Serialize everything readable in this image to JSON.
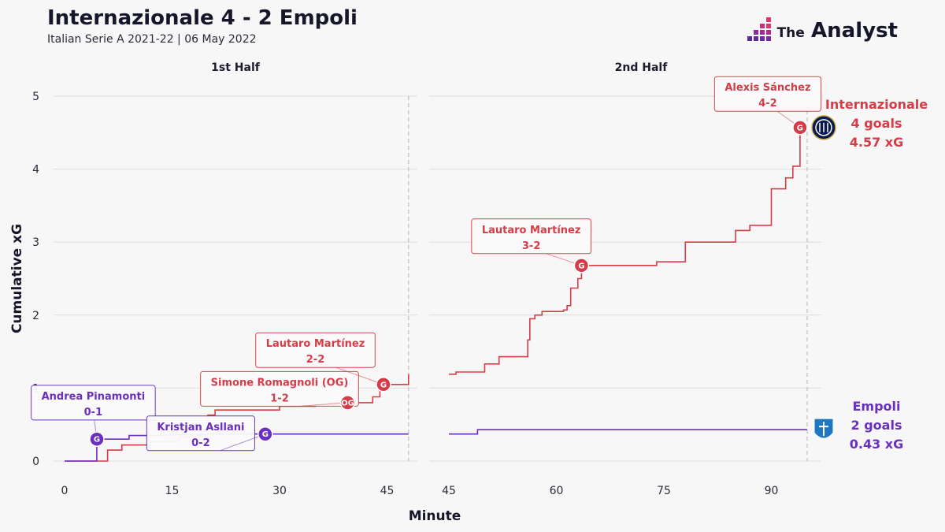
{
  "header": {
    "title": "Internazionale 4 - 2 Empoli",
    "subtitle": "Italian Serie A 2021-22 | 06 May 2022",
    "brand_the": "The",
    "brand_name": "Analyst"
  },
  "chart_data": {
    "type": "line",
    "title": "Internazionale 4 - 2 Empoli",
    "subtitle": "Italian Serie A 2021-22 | 06 May 2022",
    "xlabel": "Minute",
    "ylabel": "Cumulative xG",
    "ylim": [
      0,
      5
    ],
    "yticks": [
      "0",
      "1",
      "2",
      "3",
      "4",
      "5"
    ],
    "grid": true,
    "panels": [
      {
        "name": "1st Half",
        "xlim": [
          0,
          48
        ],
        "xticks": [
          "0",
          "15",
          "30",
          "45"
        ],
        "end_minute": 48
      },
      {
        "name": "2nd Half",
        "xlim": [
          45,
          95
        ],
        "xticks": [
          "45",
          "60",
          "75",
          "90"
        ],
        "end_minute": 95
      }
    ],
    "series": [
      {
        "name": "Internazionale",
        "color": "#d63c47",
        "goals_text": "4 goals",
        "xg_text": "4.57 xG",
        "logo": "inter-crest",
        "half1": [
          [
            0,
            0
          ],
          [
            6,
            0
          ],
          [
            6,
            0.15
          ],
          [
            8,
            0.15
          ],
          [
            8,
            0.22
          ],
          [
            12,
            0.22
          ],
          [
            12,
            0.27
          ],
          [
            16,
            0.27
          ],
          [
            16,
            0.33
          ],
          [
            19,
            0.33
          ],
          [
            19,
            0.43
          ],
          [
            20,
            0.43
          ],
          [
            20,
            0.63
          ],
          [
            21,
            0.63
          ],
          [
            21,
            0.7
          ],
          [
            30,
            0.7
          ],
          [
            30,
            0.75
          ],
          [
            35,
            0.75
          ],
          [
            35,
            0.77
          ],
          [
            37,
            0.77
          ],
          [
            37,
            0.8
          ],
          [
            43,
            0.8
          ],
          [
            43,
            0.88
          ],
          [
            44,
            0.88
          ],
          [
            44,
            1.05
          ],
          [
            48,
            1.05
          ],
          [
            48,
            1.19
          ]
        ],
        "half2": [
          [
            45,
            1.19
          ],
          [
            46,
            1.19
          ],
          [
            46,
            1.22
          ],
          [
            50,
            1.22
          ],
          [
            50,
            1.33
          ],
          [
            52,
            1.33
          ],
          [
            52,
            1.43
          ],
          [
            56,
            1.43
          ],
          [
            56,
            1.66
          ],
          [
            56.3,
            1.66
          ],
          [
            56.3,
            1.95
          ],
          [
            57,
            1.95
          ],
          [
            57,
            2.0
          ],
          [
            58,
            2.0
          ],
          [
            58,
            2.05
          ],
          [
            61,
            2.05
          ],
          [
            61,
            2.07
          ],
          [
            61.5,
            2.07
          ],
          [
            61.5,
            2.13
          ],
          [
            62,
            2.13
          ],
          [
            62,
            2.37
          ],
          [
            63,
            2.37
          ],
          [
            63,
            2.5
          ],
          [
            63.5,
            2.5
          ],
          [
            63.5,
            2.68
          ],
          [
            74,
            2.68
          ],
          [
            74,
            2.73
          ],
          [
            78,
            2.73
          ],
          [
            78,
            3.0
          ],
          [
            85,
            3.0
          ],
          [
            85,
            3.16
          ],
          [
            87,
            3.16
          ],
          [
            87,
            3.23
          ],
          [
            90,
            3.23
          ],
          [
            90,
            3.73
          ],
          [
            92,
            3.73
          ],
          [
            92,
            3.88
          ],
          [
            93,
            3.88
          ],
          [
            93,
            4.04
          ],
          [
            94,
            4.04
          ],
          [
            94,
            4.57
          ]
        ]
      },
      {
        "name": "Empoli",
        "color": "#6a2fbf",
        "goals_text": "2 goals",
        "xg_text": "0.43 xG",
        "logo": "empoli-crest",
        "half1": [
          [
            0,
            0
          ],
          [
            4.5,
            0
          ],
          [
            4.5,
            0.3
          ],
          [
            9,
            0.3
          ],
          [
            9,
            0.35
          ],
          [
            14,
            0.35
          ],
          [
            14,
            0.36
          ],
          [
            20,
            0.36
          ],
          [
            20,
            0.37
          ],
          [
            48,
            0.37
          ]
        ],
        "half2": [
          [
            45,
            0.37
          ],
          [
            49,
            0.37
          ],
          [
            49,
            0.43
          ],
          [
            95,
            0.43
          ]
        ]
      }
    ],
    "annotations": [
      {
        "panel": 0,
        "team": "Empoli",
        "x": 4.5,
        "y": 0.3,
        "marker": "G",
        "player": "Andrea Pinamonti",
        "score": "0-1",
        "label_x": 4,
        "label_y": 0.8
      },
      {
        "panel": 0,
        "team": "Empoli",
        "x": 28,
        "y": 0.37,
        "marker": "G",
        "player": "Kristjan Asllani",
        "score": "0-2",
        "label_x": 19,
        "label_y": 0.38
      },
      {
        "panel": 0,
        "team": "Internazionale",
        "x": 39.5,
        "y": 0.8,
        "marker": "OG",
        "player": "Simone Romagnoli (OG)",
        "score": "1-2",
        "label_x": 30,
        "label_y": 0.99
      },
      {
        "panel": 0,
        "team": "Internazionale",
        "x": 44.5,
        "y": 1.05,
        "marker": "G",
        "player": "Lautaro Martínez",
        "score": "2-2",
        "label_x": 35,
        "label_y": 1.52
      },
      {
        "panel": 1,
        "team": "Internazionale",
        "x": 63.5,
        "y": 2.68,
        "marker": "G",
        "player": "Lautaro Martínez",
        "score": "3-2",
        "label_x": 56.5,
        "label_y": 3.08
      },
      {
        "panel": 1,
        "team": "Internazionale",
        "x": 94,
        "y": 4.57,
        "marker": "G",
        "player": "Alexis Sánchez",
        "score": "4-2",
        "label_x": 89.5,
        "label_y": 5.03
      }
    ]
  }
}
